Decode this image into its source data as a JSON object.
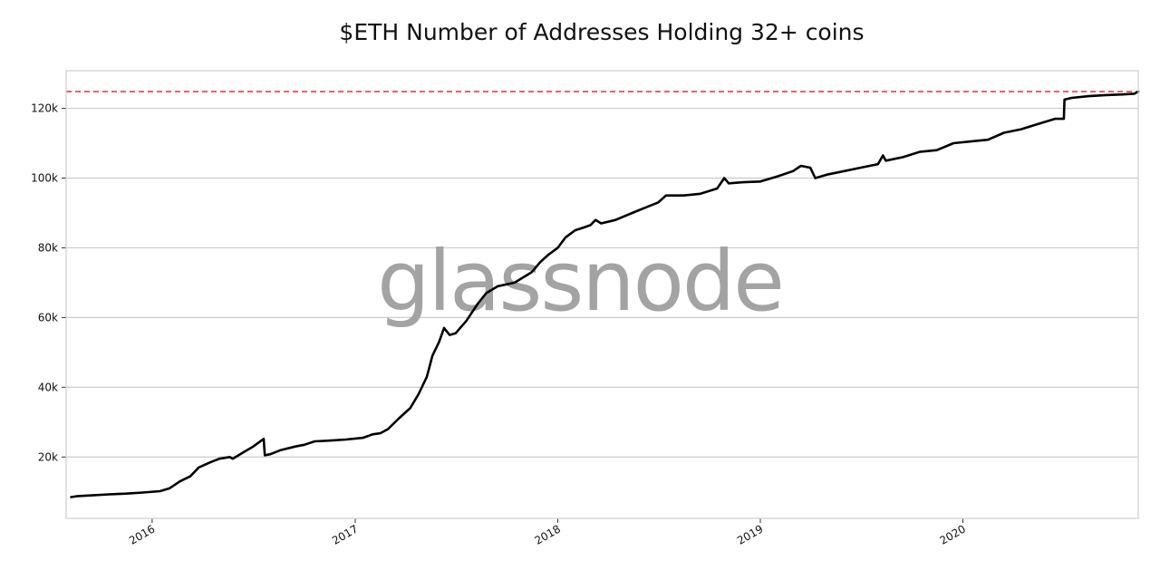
{
  "chart_data": {
    "type": "line",
    "title": "$ETH Number of Addresses Holding 32+ coins",
    "xlabel": "",
    "ylabel": "",
    "watermark": "glassnode",
    "x_axis": {
      "type": "date",
      "range": [
        "2015-07-30",
        "2020-11-12"
      ],
      "ticks": [
        {
          "date": "2016-01-01",
          "label": "2016"
        },
        {
          "date": "2017-01-01",
          "label": "2017"
        },
        {
          "date": "2018-01-01",
          "label": "2018"
        },
        {
          "date": "2019-01-01",
          "label": "2019"
        },
        {
          "date": "2020-01-01",
          "label": "2020"
        }
      ]
    },
    "y_axis": {
      "range": [
        2400,
        130800
      ],
      "ticks": [
        {
          "value": 20000,
          "label": "20k"
        },
        {
          "value": 40000,
          "label": "40k"
        },
        {
          "value": 60000,
          "label": "60k"
        },
        {
          "value": 80000,
          "label": "80k"
        },
        {
          "value": 100000,
          "label": "100k"
        },
        {
          "value": 120000,
          "label": "120k"
        }
      ]
    },
    "grid": "horizontal",
    "reference_line": {
      "value": 124800,
      "color": "#e8413a",
      "style": "dashed"
    },
    "series": [
      {
        "color": "#000000",
        "points": [
          [
            "2015-08-08",
            8500
          ],
          [
            "2015-08-20",
            8800
          ],
          [
            "2015-09-15",
            9000
          ],
          [
            "2015-10-15",
            9300
          ],
          [
            "2015-11-15",
            9500
          ],
          [
            "2015-12-15",
            9800
          ],
          [
            "2016-01-15",
            10200
          ],
          [
            "2016-02-01",
            11000
          ],
          [
            "2016-02-20",
            13000
          ],
          [
            "2016-03-10",
            14500
          ],
          [
            "2016-03-25",
            17000
          ],
          [
            "2016-04-15",
            18500
          ],
          [
            "2016-05-01",
            19500
          ],
          [
            "2016-05-20",
            20000
          ],
          [
            "2016-05-25",
            19500
          ],
          [
            "2016-06-15",
            21500
          ],
          [
            "2016-07-01",
            23000
          ],
          [
            "2016-07-20",
            25200
          ],
          [
            "2016-07-22",
            20500
          ],
          [
            "2016-08-01",
            20800
          ],
          [
            "2016-08-20",
            22000
          ],
          [
            "2016-09-15",
            23000
          ],
          [
            "2016-10-01",
            23500
          ],
          [
            "2016-10-20",
            24500
          ],
          [
            "2016-11-15",
            24700
          ],
          [
            "2016-12-15",
            25000
          ],
          [
            "2017-01-15",
            25500
          ],
          [
            "2017-02-01",
            26500
          ],
          [
            "2017-02-15",
            26800
          ],
          [
            "2017-03-01",
            28000
          ],
          [
            "2017-03-20",
            31000
          ],
          [
            "2017-04-10",
            34000
          ],
          [
            "2017-04-25",
            38000
          ],
          [
            "2017-05-10",
            43000
          ],
          [
            "2017-05-20",
            49000
          ],
          [
            "2017-06-01",
            53000
          ],
          [
            "2017-06-10",
            57000
          ],
          [
            "2017-06-20",
            55000
          ],
          [
            "2017-07-01",
            55500
          ],
          [
            "2017-07-20",
            59000
          ],
          [
            "2017-08-10",
            64000
          ],
          [
            "2017-08-25",
            67000
          ],
          [
            "2017-09-15",
            69000
          ],
          [
            "2017-10-15",
            70000
          ],
          [
            "2017-11-15",
            73000
          ],
          [
            "2017-12-01",
            76000
          ],
          [
            "2017-12-15",
            78000
          ],
          [
            "2018-01-01",
            80000
          ],
          [
            "2018-01-15",
            83000
          ],
          [
            "2018-02-01",
            85000
          ],
          [
            "2018-02-20",
            86000
          ],
          [
            "2018-03-01",
            86500
          ],
          [
            "2018-03-10",
            88000
          ],
          [
            "2018-03-20",
            87000
          ],
          [
            "2018-04-15",
            88000
          ],
          [
            "2018-05-15",
            90000
          ],
          [
            "2018-06-15",
            92000
          ],
          [
            "2018-07-01",
            93000
          ],
          [
            "2018-07-15",
            95000
          ],
          [
            "2018-08-15",
            95000
          ],
          [
            "2018-09-15",
            95500
          ],
          [
            "2018-10-15",
            97000
          ],
          [
            "2018-10-28",
            100000
          ],
          [
            "2018-11-05",
            98500
          ],
          [
            "2018-12-01",
            98800
          ],
          [
            "2019-01-01",
            99000
          ],
          [
            "2019-02-01",
            100500
          ],
          [
            "2019-03-01",
            102000
          ],
          [
            "2019-03-15",
            103500
          ],
          [
            "2019-04-01",
            103000
          ],
          [
            "2019-04-10",
            100000
          ],
          [
            "2019-05-01",
            101000
          ],
          [
            "2019-06-01",
            102000
          ],
          [
            "2019-07-01",
            103000
          ],
          [
            "2019-08-01",
            104000
          ],
          [
            "2019-08-10",
            106500
          ],
          [
            "2019-08-15",
            105000
          ],
          [
            "2019-09-15",
            106000
          ],
          [
            "2019-10-15",
            107500
          ],
          [
            "2019-11-15",
            108000
          ],
          [
            "2019-12-15",
            110000
          ],
          [
            "2020-01-15",
            110500
          ],
          [
            "2020-02-15",
            111000
          ],
          [
            "2020-03-15",
            113000
          ],
          [
            "2020-04-15",
            114000
          ],
          [
            "2020-05-15",
            115500
          ],
          [
            "2020-06-15",
            117000
          ],
          [
            "2020-07-01",
            117000
          ],
          [
            "2020-07-02",
            122500
          ],
          [
            "2020-07-15",
            123000
          ],
          [
            "2020-08-15",
            123500
          ],
          [
            "2020-09-15",
            123800
          ],
          [
            "2020-10-15",
            124000
          ],
          [
            "2020-11-05",
            124200
          ],
          [
            "2020-11-12",
            124800
          ]
        ]
      }
    ]
  }
}
